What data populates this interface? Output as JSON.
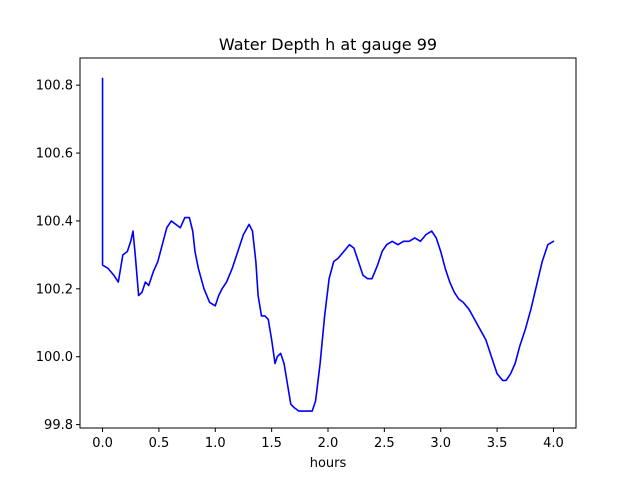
{
  "chart_data": {
    "type": "line",
    "title": "Water Depth h at gauge 99",
    "xlabel": "hours",
    "ylabel": "",
    "xlim": [
      -0.2,
      4.2
    ],
    "ylim": [
      99.79,
      100.88
    ],
    "xticks": [
      0.0,
      0.5,
      1.0,
      1.5,
      2.0,
      2.5,
      3.0,
      3.5,
      4.0
    ],
    "xtick_labels": [
      "0.0",
      "0.5",
      "1.0",
      "1.5",
      "2.0",
      "2.5",
      "3.0",
      "3.5",
      "4.0"
    ],
    "yticks": [
      99.8,
      100.0,
      100.2,
      100.4,
      100.6,
      100.8
    ],
    "ytick_labels": [
      "99.8",
      "100.0",
      "100.2",
      "100.4",
      "100.6",
      "100.8"
    ],
    "grid": false,
    "legend": "none",
    "series": [
      {
        "color": "#0000ff",
        "x": [
          0.0,
          0.0,
          0.0,
          0.05,
          0.1,
          0.14,
          0.18,
          0.22,
          0.25,
          0.27,
          0.29,
          0.32,
          0.35,
          0.38,
          0.41,
          0.45,
          0.49,
          0.53,
          0.57,
          0.61,
          0.65,
          0.69,
          0.73,
          0.77,
          0.8,
          0.82,
          0.85,
          0.9,
          0.95,
          1.0,
          1.03,
          1.06,
          1.1,
          1.15,
          1.2,
          1.25,
          1.3,
          1.33,
          1.36,
          1.38,
          1.41,
          1.44,
          1.47,
          1.5,
          1.53,
          1.55,
          1.58,
          1.61,
          1.64,
          1.67,
          1.7,
          1.74,
          1.78,
          1.82,
          1.86,
          1.89,
          1.93,
          1.97,
          2.01,
          2.05,
          2.09,
          2.14,
          2.19,
          2.23,
          2.27,
          2.31,
          2.35,
          2.39,
          2.44,
          2.48,
          2.52,
          2.57,
          2.62,
          2.67,
          2.72,
          2.77,
          2.82,
          2.87,
          2.92,
          2.96,
          3.0,
          3.04,
          3.08,
          3.12,
          3.16,
          3.2,
          3.25,
          3.3,
          3.35,
          3.4,
          3.45,
          3.5,
          3.55,
          3.58,
          3.62,
          3.66,
          3.7,
          3.75,
          3.8,
          3.85,
          3.9,
          3.95,
          4.0
        ],
        "y": [
          100.82,
          100.4,
          100.27,
          100.26,
          100.24,
          100.22,
          100.3,
          100.31,
          100.34,
          100.37,
          100.3,
          100.18,
          100.19,
          100.22,
          100.21,
          100.25,
          100.28,
          100.33,
          100.38,
          100.4,
          100.39,
          100.38,
          100.41,
          100.41,
          100.37,
          100.31,
          100.26,
          100.2,
          100.16,
          100.15,
          100.18,
          100.2,
          100.22,
          100.26,
          100.31,
          100.36,
          100.39,
          100.37,
          100.28,
          100.18,
          100.12,
          100.12,
          100.11,
          100.05,
          99.98,
          100.0,
          100.01,
          99.98,
          99.92,
          99.86,
          99.85,
          99.84,
          99.84,
          99.84,
          99.84,
          99.87,
          99.98,
          100.12,
          100.23,
          100.28,
          100.29,
          100.31,
          100.33,
          100.32,
          100.28,
          100.24,
          100.23,
          100.23,
          100.27,
          100.31,
          100.33,
          100.34,
          100.33,
          100.34,
          100.34,
          100.35,
          100.34,
          100.36,
          100.37,
          100.35,
          100.31,
          100.26,
          100.22,
          100.19,
          100.17,
          100.16,
          100.14,
          100.11,
          100.08,
          100.05,
          100.0,
          99.95,
          99.93,
          99.93,
          99.95,
          99.98,
          100.03,
          100.08,
          100.14,
          100.21,
          100.28,
          100.33,
          100.34
        ]
      }
    ]
  }
}
